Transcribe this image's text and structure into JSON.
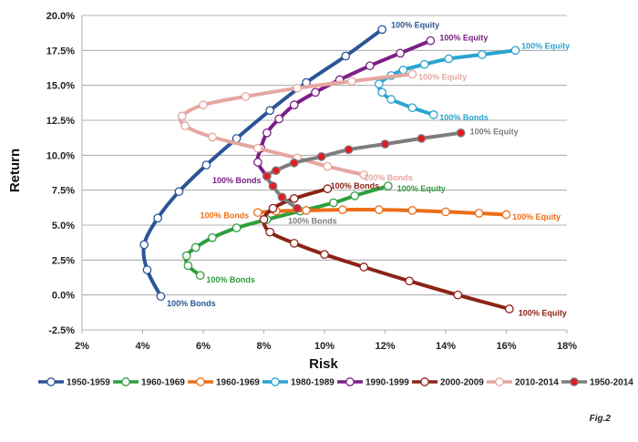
{
  "chart_data": {
    "type": "line",
    "title": "",
    "xlabel": "Risk",
    "ylabel": "Return",
    "xlim": [
      2,
      18
    ],
    "ylim": [
      -2.5,
      20
    ],
    "xticks": [
      2,
      4,
      6,
      8,
      10,
      12,
      14,
      16,
      18
    ],
    "yticks": [
      -2.5,
      0,
      2.5,
      5,
      7.5,
      10,
      12.5,
      15,
      17.5,
      20
    ],
    "x_tick_labels": [
      "2%",
      "4%",
      "6%",
      "8%",
      "10%",
      "12%",
      "14%",
      "16%",
      "18%"
    ],
    "y_tick_labels": [
      "-2.5%",
      "0.0%",
      "2.5%",
      "5.0%",
      "7.5%",
      "10.0%",
      "12.5%",
      "15.0%",
      "17.5%",
      "20.0%"
    ],
    "grid": "horizontal",
    "legend_position": "bottom",
    "figure_label": "Fig.2",
    "series": [
      {
        "name": "1950-1959",
        "color": "#2b5597",
        "marker_fill": "#ffffff",
        "points": [
          [
            4.6,
            -0.1
          ],
          [
            4.15,
            1.8
          ],
          [
            4.05,
            3.6
          ],
          [
            4.5,
            5.5
          ],
          [
            5.2,
            7.4
          ],
          [
            6.1,
            9.3
          ],
          [
            7.1,
            11.2
          ],
          [
            8.2,
            13.2
          ],
          [
            9.4,
            15.2
          ],
          [
            10.7,
            17.1
          ],
          [
            11.9,
            19.0
          ]
        ]
      },
      {
        "name": "1960-1969",
        "color": "#2e9e3e",
        "marker_fill": "#ffffff",
        "points": [
          [
            5.9,
            1.4
          ],
          [
            5.5,
            2.1
          ],
          [
            5.45,
            2.8
          ],
          [
            5.75,
            3.4
          ],
          [
            6.3,
            4.1
          ],
          [
            7.1,
            4.8
          ],
          [
            8.1,
            5.4
          ],
          [
            9.2,
            6.0
          ],
          [
            10.3,
            6.6
          ],
          [
            11.0,
            7.1
          ],
          [
            12.1,
            7.8
          ]
        ]
      },
      {
        "name": "1960-1969",
        "color": "#ea6e18",
        "marker_fill": "#ffffff",
        "points": [
          [
            7.8,
            5.9
          ],
          [
            8.4,
            6.0
          ],
          [
            9.4,
            6.05
          ],
          [
            10.6,
            6.1
          ],
          [
            11.8,
            6.1
          ],
          [
            12.9,
            6.05
          ],
          [
            14.0,
            5.95
          ],
          [
            15.1,
            5.85
          ],
          [
            16.0,
            5.75
          ]
        ]
      },
      {
        "name": "1980-1989",
        "color": "#2aa4cf",
        "marker_fill": "#ffffff",
        "points": [
          [
            13.6,
            12.9
          ],
          [
            12.9,
            13.4
          ],
          [
            12.2,
            14.0
          ],
          [
            11.9,
            14.5
          ],
          [
            11.8,
            15.1
          ],
          [
            12.2,
            15.7
          ],
          [
            12.6,
            16.1
          ],
          [
            13.3,
            16.5
          ],
          [
            14.1,
            16.9
          ],
          [
            15.2,
            17.2
          ],
          [
            16.3,
            17.5
          ]
        ]
      },
      {
        "name": "1990-1999",
        "color": "#7a1f86",
        "marker_fill": "#ffffff",
        "points": [
          [
            8.1,
            8.5
          ],
          [
            7.8,
            9.5
          ],
          [
            7.9,
            10.5
          ],
          [
            8.1,
            11.6
          ],
          [
            8.5,
            12.6
          ],
          [
            9.0,
            13.6
          ],
          [
            9.7,
            14.5
          ],
          [
            10.5,
            15.4
          ],
          [
            11.5,
            16.4
          ],
          [
            12.5,
            17.3
          ],
          [
            13.5,
            18.2
          ]
        ]
      },
      {
        "name": "2000-2009",
        "color": "#8b2316",
        "marker_fill": "#ffffff",
        "points": [
          [
            10.1,
            7.6
          ],
          [
            9.0,
            6.9
          ],
          [
            8.3,
            6.2
          ],
          [
            8.0,
            5.4
          ],
          [
            8.2,
            4.5
          ],
          [
            9.0,
            3.7
          ],
          [
            10.0,
            2.9
          ],
          [
            11.3,
            2.0
          ],
          [
            12.8,
            1.0
          ],
          [
            14.4,
            0.0
          ],
          [
            16.1,
            -1.0
          ]
        ]
      },
      {
        "name": "2010-2014",
        "color": "#e4a7a0",
        "marker_fill": "#ffffff",
        "points": [
          [
            11.3,
            8.6
          ],
          [
            10.1,
            9.2
          ],
          [
            9.1,
            9.8
          ],
          [
            7.8,
            10.5
          ],
          [
            6.3,
            11.3
          ],
          [
            5.4,
            12.1
          ],
          [
            5.3,
            12.8
          ],
          [
            6.0,
            13.6
          ],
          [
            7.4,
            14.2
          ],
          [
            9.1,
            14.8
          ],
          [
            10.9,
            15.3
          ],
          [
            12.9,
            15.8
          ]
        ]
      },
      {
        "name": "1950-2014",
        "color": "#7d7d7d",
        "marker_fill": "#e31b23",
        "points": [
          [
            9.1,
            6.2
          ],
          [
            8.6,
            7.0
          ],
          [
            8.3,
            7.8
          ],
          [
            8.1,
            8.5
          ],
          [
            8.4,
            8.9
          ],
          [
            9.0,
            9.45
          ],
          [
            9.9,
            9.9
          ],
          [
            10.8,
            10.4
          ],
          [
            12.0,
            10.8
          ],
          [
            13.2,
            11.2
          ],
          [
            14.5,
            11.6
          ]
        ]
      }
    ],
    "annotations": [
      {
        "text": "100% Equity",
        "x": 12.2,
        "y": 19.3,
        "color": "#2b5597"
      },
      {
        "text": "100% Bonds",
        "x": 4.8,
        "y": -0.6,
        "color": "#2b5597"
      },
      {
        "text": "100% Equity",
        "x": 13.8,
        "y": 18.4,
        "color": "#7a1f86"
      },
      {
        "text": "100% Equity",
        "x": 16.5,
        "y": 17.8,
        "color": "#2aa4cf"
      },
      {
        "text": "100% Equity",
        "x": 13.1,
        "y": 15.6,
        "color": "#e4a7a0"
      },
      {
        "text": "100% Bonds",
        "x": 13.8,
        "y": 12.7,
        "color": "#2aa4cf"
      },
      {
        "text": "100% Equity",
        "x": 14.8,
        "y": 11.7,
        "color": "#7d7d7d"
      },
      {
        "text": "100% Bonds",
        "x": 11.3,
        "y": 8.4,
        "color": "#e4a7a0"
      },
      {
        "text": "100% Bonds",
        "x": 6.3,
        "y": 8.2,
        "color": "#7a1f86"
      },
      {
        "text": "100% Bonds",
        "x": 10.2,
        "y": 7.8,
        "color": "#8b2316"
      },
      {
        "text": "100% Equity",
        "x": 12.4,
        "y": 7.6,
        "color": "#2e9e3e"
      },
      {
        "text": "100% Bonds",
        "x": 5.9,
        "y": 5.7,
        "color": "#ea6e18"
      },
      {
        "text": "100% Bonds",
        "x": 8.8,
        "y": 5.3,
        "color": "#7d7d7d"
      },
      {
        "text": "100% Equity",
        "x": 16.2,
        "y": 5.6,
        "color": "#ea6e18"
      },
      {
        "text": "100% Bonds",
        "x": 6.1,
        "y": 1.1,
        "color": "#2e9e3e"
      },
      {
        "text": "100% Equity",
        "x": 16.4,
        "y": -1.3,
        "color": "#8b2316"
      }
    ]
  }
}
